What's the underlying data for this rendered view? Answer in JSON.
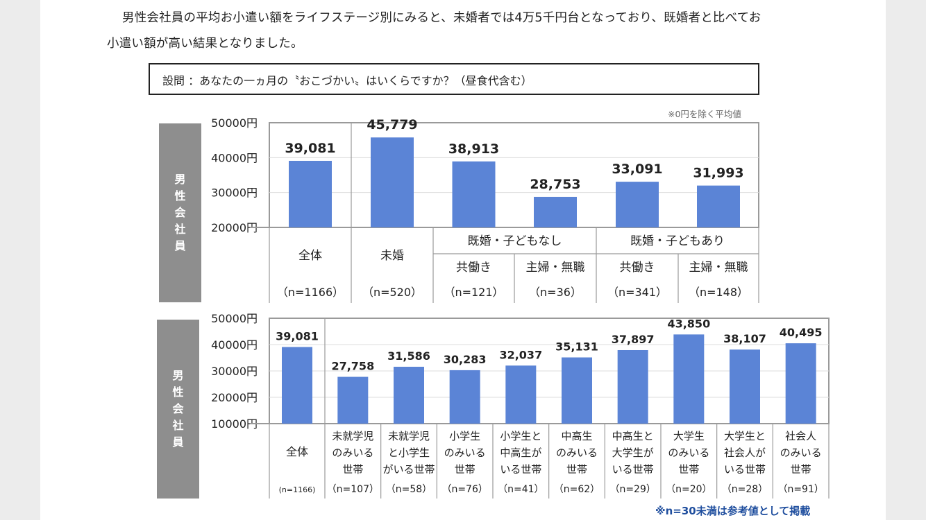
{
  "intro": {
    "line1": "男性会社員の平均お小遣い額をライフステージ別にみると、未婚者では4万5千円台となっており、既婚者と比べてお",
    "line2": "小遣い額が高い結果となりました。"
  },
  "question": "設問 ：あなたの一ヵ月の〝おこづかい〟はいくらですか？（昼食代含む）",
  "note": "※0円を除く平均値",
  "footnote": "※n=30未満は参考値として掲載",
  "colors": {
    "bar": "#5b84d6",
    "side_label_bg": "#8e8e8e",
    "footnote": "#1f4e9e"
  },
  "chart_data": [
    {
      "type": "bar",
      "side_label": "男\n性\n会\n社\n員",
      "yticks": [
        "50000円",
        "40000円",
        "30000円",
        "20000円"
      ],
      "ylim": [
        20000,
        50000
      ],
      "grid": true,
      "categories": [
        "全体",
        "未婚",
        "共働き",
        "主婦・無職",
        "共働き",
        "主婦・無職"
      ],
      "groups": [
        {
          "label": "既婚・子どもなし",
          "span": [
            2,
            3
          ]
        },
        {
          "label": "既婚・子どもあり",
          "span": [
            4,
            5
          ]
        }
      ],
      "n_labels": [
        "（n=1166）",
        "（n=520）",
        "（n=121）",
        "（n=36）",
        "（n=341）",
        "（n=148）"
      ],
      "values": [
        39081,
        45779,
        38913,
        28753,
        33091,
        31993
      ],
      "value_labels": [
        "39,081",
        "45,779",
        "38,913",
        "28,753",
        "33,091",
        "31,993"
      ]
    },
    {
      "type": "bar",
      "side_label": "男\n性\n会\n社\n員",
      "yticks": [
        "50000円",
        "40000円",
        "30000円",
        "20000円",
        "10000円"
      ],
      "ylim": [
        10000,
        50000
      ],
      "grid": true,
      "categories": [
        "全体",
        "未就学児\nのみいる\n世帯",
        "未就学児\nと小学生\nがいる世帯",
        "小学生\nのみいる\n世帯",
        "小学生と\n中高生が\nいる世帯",
        "中高生\nのみいる\n世帯",
        "中高生と\n大学生が\nいる世帯",
        "大学生\nのみいる\n世帯",
        "大学生と\n社会人が\nいる世帯",
        "社会人\nのみいる\n世帯"
      ],
      "n_labels": [
        "(n=1166)",
        "（n=107）",
        "（n=58）",
        "（n=76）",
        "（n=41）",
        "（n=62）",
        "（n=29）",
        "（n=20）",
        "（n=28）",
        "（n=91）"
      ],
      "values": [
        39081,
        27758,
        31586,
        30283,
        32037,
        35131,
        37897,
        43850,
        38107,
        40495
      ],
      "value_labels": [
        "39,081",
        "27,758",
        "31,586",
        "30,283",
        "32,037",
        "35,131",
        "37,897",
        "43,850",
        "38,107",
        "40,495"
      ]
    }
  ]
}
